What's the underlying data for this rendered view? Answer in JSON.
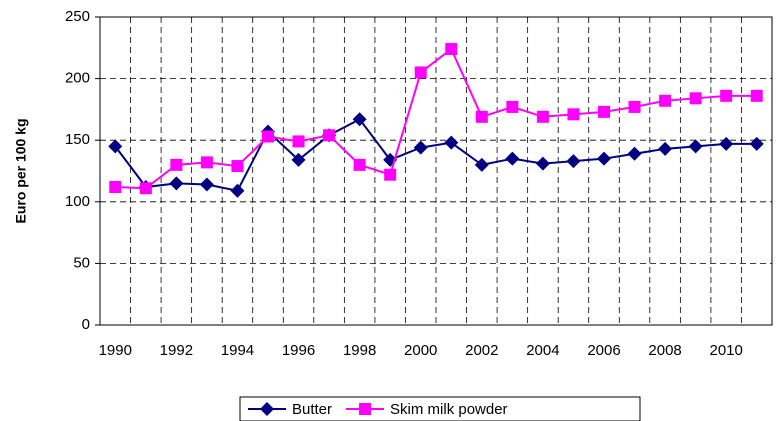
{
  "chart_data": {
    "type": "line",
    "y_label": "Euro per 100 kg",
    "categories": [
      "1990",
      null,
      "1992",
      null,
      "1994",
      null,
      "1996",
      null,
      "1998",
      null,
      "2000",
      null,
      "2002",
      null,
      "2004",
      null,
      "2006",
      null,
      "2008",
      null,
      "2010",
      null
    ],
    "series": [
      {
        "name": "Butter",
        "color": "#000080",
        "marker": "diamond",
        "values": [
          145,
          112,
          115,
          114,
          109,
          157,
          134,
          154,
          167,
          134,
          144,
          148,
          130,
          135,
          131,
          133,
          135,
          139,
          143,
          145,
          147,
          147
        ]
      },
      {
        "name": "Skim milk powder",
        "color": "#ff00ff",
        "marker": "square",
        "values": [
          112,
          111,
          130,
          132,
          129,
          153,
          149,
          154,
          130,
          122,
          205,
          224,
          169,
          177,
          169,
          171,
          173,
          177,
          182,
          184,
          186,
          186
        ]
      }
    ],
    "ylim": [
      0,
      250
    ],
    "yticks": [
      0,
      50,
      100,
      150,
      200,
      250
    ],
    "grid": true,
    "legend": "bottom"
  }
}
